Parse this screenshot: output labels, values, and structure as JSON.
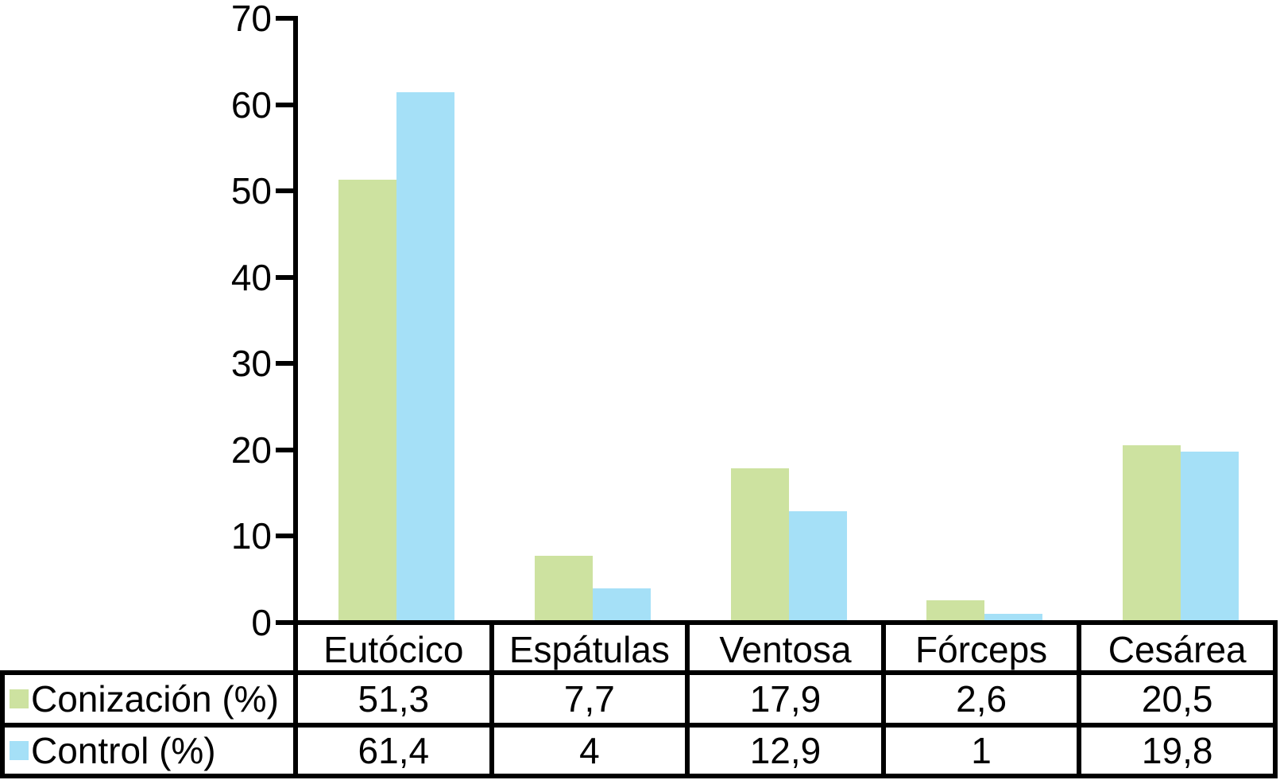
{
  "figure": {
    "background": "#ffffff",
    "axis_color": "#000000",
    "table_border_color": "#000000",
    "text_color": "#000000"
  },
  "chart_data": {
    "type": "bar",
    "title": "",
    "xlabel": "",
    "ylabel": "",
    "grid": false,
    "legend_position": "table-row-headers",
    "ylim": [
      0,
      70
    ],
    "yticks": [
      0,
      10,
      20,
      30,
      40,
      50,
      60,
      70
    ],
    "ytick_labels": [
      "0",
      "10",
      "20",
      "30",
      "40",
      "50",
      "60",
      "70"
    ],
    "categories": [
      "Eutócico",
      "Espátulas",
      "Ventosa",
      "Fórceps",
      "Cesárea"
    ],
    "series": [
      {
        "name": "Conización (%)",
        "color": "#cde2a0",
        "values": [
          51.3,
          7.7,
          17.9,
          2.6,
          20.5
        ],
        "value_labels": [
          "51,3",
          "7,7",
          "17,9",
          "2,6",
          "20,5"
        ]
      },
      {
        "name": "Control (%)",
        "color": "#a5e0f7",
        "values": [
          61.4,
          4,
          12.9,
          1,
          19.8
        ],
        "value_labels": [
          "61,4",
          "4",
          "12,9",
          "1",
          "19,8"
        ]
      }
    ]
  }
}
